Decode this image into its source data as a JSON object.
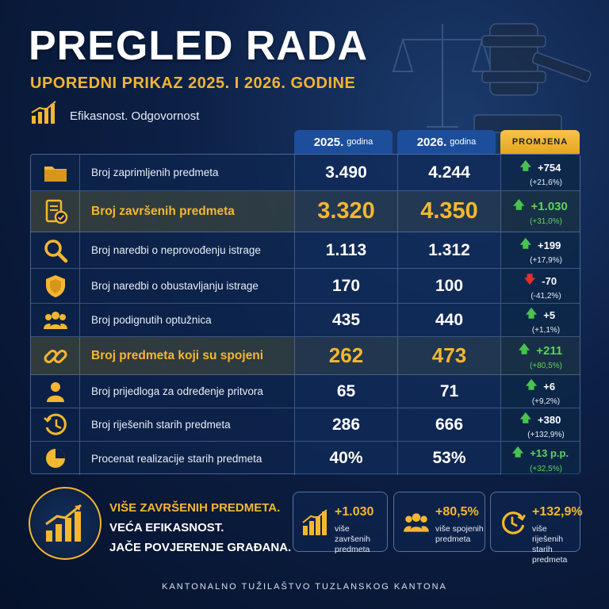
{
  "header": {
    "title": "PREGLED RADA",
    "subtitle": "UPOREDNI PRIKAZ 2025. I 2026. GODINE",
    "tagline": "Efikasnost. Odgovornost"
  },
  "columns": {
    "c2025_year": "2025.",
    "c2025_suffix": "godina",
    "c2026_year": "2026.",
    "c2026_suffix": "godina",
    "change": "PROMJENA"
  },
  "rows": [
    {
      "icon": "folder-icon",
      "label": "Broj zaprimljenih predmeta",
      "v2025": "3.490",
      "v2026": "4.244",
      "change": "+754",
      "pct": "(+21,6%)",
      "direction": "up"
    },
    {
      "icon": "document-check-icon",
      "label": "Broj završenih predmeta",
      "v2025": "3.320",
      "v2026": "4.350",
      "change": "+1.030",
      "pct": "(+31,0%)",
      "direction": "up"
    },
    {
      "icon": "magnifier-icon",
      "label": "Broj naredbi o neprovođenju istrage",
      "v2025": "1.113",
      "v2026": "1.312",
      "change": "+199",
      "pct": "(+17,9%)",
      "direction": "up"
    },
    {
      "icon": "shield-icon",
      "label": "Broj naredbi o obustavljanju istrage",
      "v2025": "170",
      "v2026": "100",
      "change": "-70",
      "pct": "(-41,2%)",
      "direction": "down"
    },
    {
      "icon": "people-group-icon",
      "label": "Broj podignutih optužnica",
      "v2025": "435",
      "v2026": "440",
      "change": "+5",
      "pct": "(+1,1%)",
      "direction": "up"
    },
    {
      "icon": "chain-link-icon",
      "label": "Broj predmeta koji su spojeni",
      "v2025": "262",
      "v2026": "473",
      "change": "+211",
      "pct": "(+80,5%)",
      "direction": "up"
    },
    {
      "icon": "person-icon",
      "label": "Broj prijedloga za određenje pritvora",
      "v2025": "65",
      "v2026": "71",
      "change": "+6",
      "pct": "(+9,2%)",
      "direction": "up"
    },
    {
      "icon": "history-clock-icon",
      "label": "Broj riješenih starih predmeta",
      "v2025": "286",
      "v2026": "666",
      "change": "+380",
      "pct": "(+132,9%)",
      "direction": "up"
    },
    {
      "icon": "pie-chart-icon",
      "label": "Procenat realizacije starih predmeta",
      "v2025": "40%",
      "v2026": "53%",
      "change": "+13 p.p.",
      "pct": "(+32,5%)",
      "direction": "up"
    }
  ],
  "slogan": {
    "line1": "VIŠE ZAVRŠENIH PREDMETA.",
    "line2": "VEĆA EFIKASNOST.",
    "line3": "JAČE POVJERENJE GRAĐANA."
  },
  "cards": [
    {
      "icon": "bar-chart-up-icon",
      "value": "+1.030",
      "desc1": "više završenih",
      "desc2": "predmeta"
    },
    {
      "icon": "people-group-icon",
      "value": "+80,5%",
      "desc1": "više spojenih",
      "desc2": "predmeta"
    },
    {
      "icon": "clock-arrow-icon",
      "value": "+132,9%",
      "desc1": "više riješenih",
      "desc2": "starih predmeta"
    }
  ],
  "footer": "KANTONALNO TUŽILAŠTVO TUZLANSKOG KANTONA",
  "colors": {
    "accent": "#f4b730",
    "up": "#49c24e",
    "down": "#e0302a",
    "header_blue": "#1c4e9c",
    "background": "#0c1f44"
  }
}
